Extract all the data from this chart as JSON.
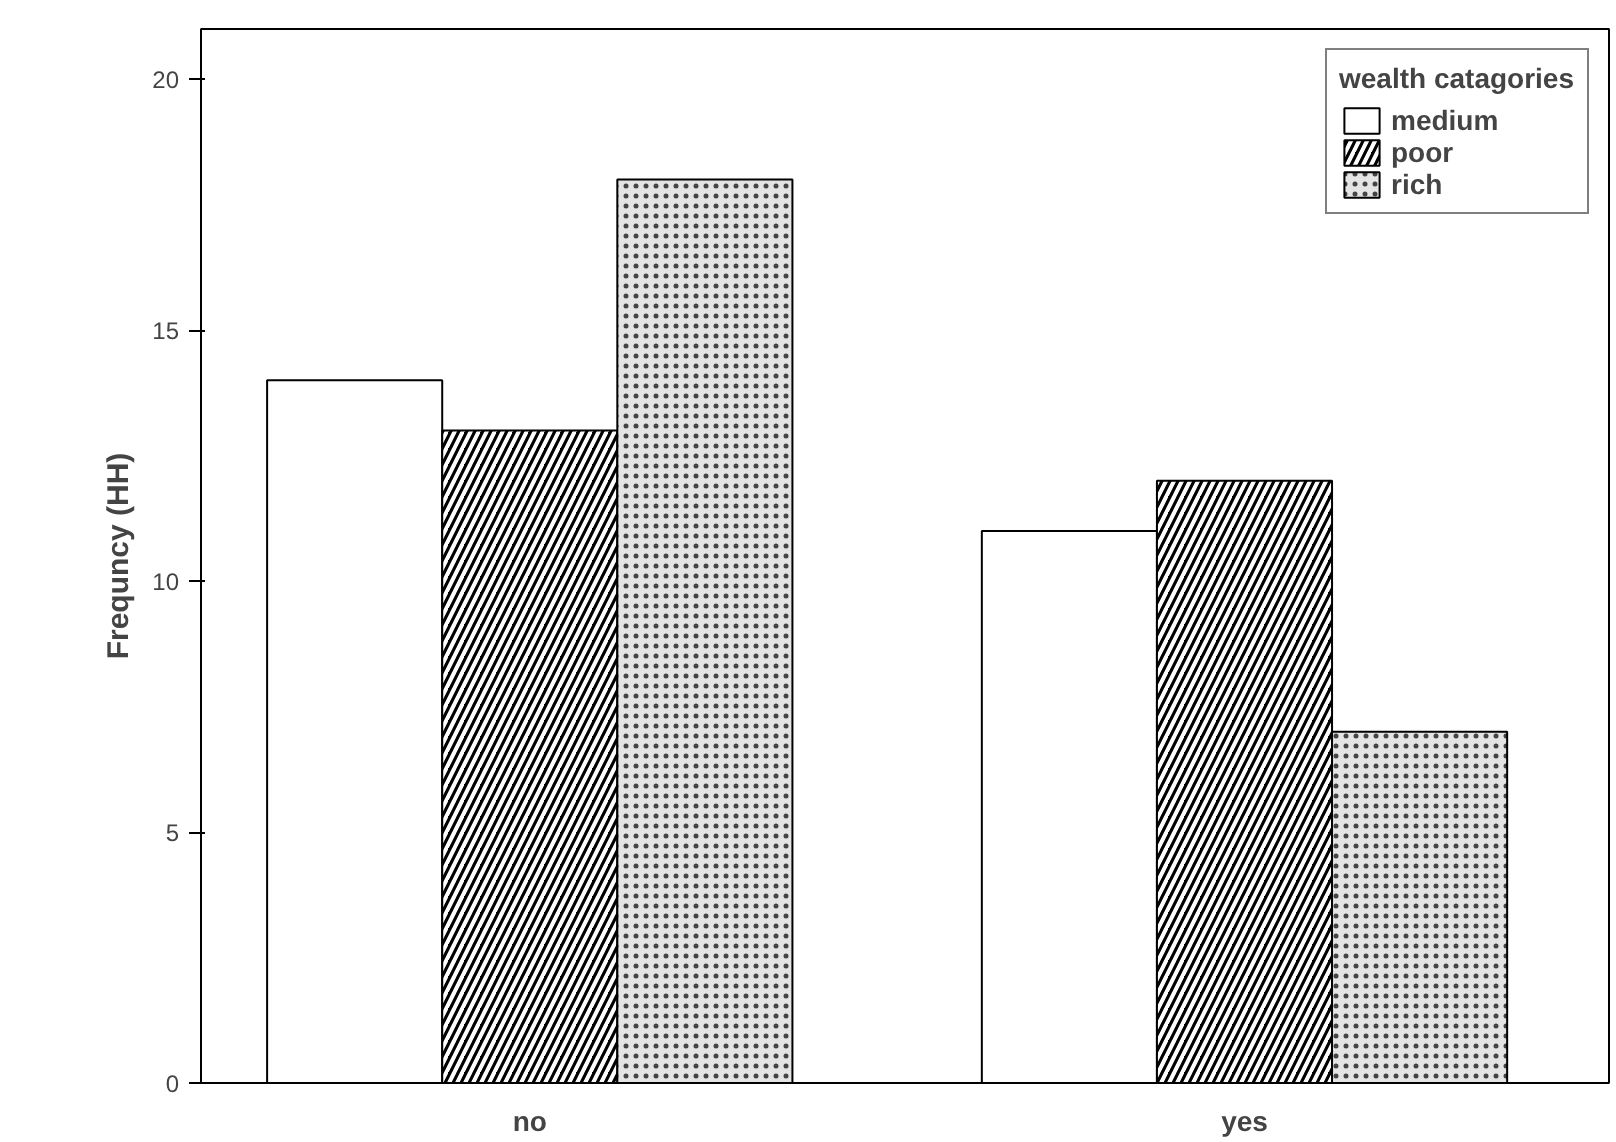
{
  "chart_data": {
    "type": "bar",
    "ylabel": "Frequncy (HH)",
    "categories": [
      "no",
      "yes"
    ],
    "series": [
      {
        "name": "medium",
        "color": "#ffffff",
        "values": [
          14,
          11
        ]
      },
      {
        "name": "poor",
        "color": "#000000",
        "values": [
          13,
          12
        ]
      },
      {
        "name": "rich",
        "color": "#e4e4e4",
        "values": [
          18,
          7
        ]
      }
    ],
    "legend_title": "wealth catagories",
    "legend": "top right",
    "ylim": [
      0,
      21
    ],
    "yticks": [
      0,
      5,
      10,
      15,
      20
    ],
    "grid": false
  }
}
